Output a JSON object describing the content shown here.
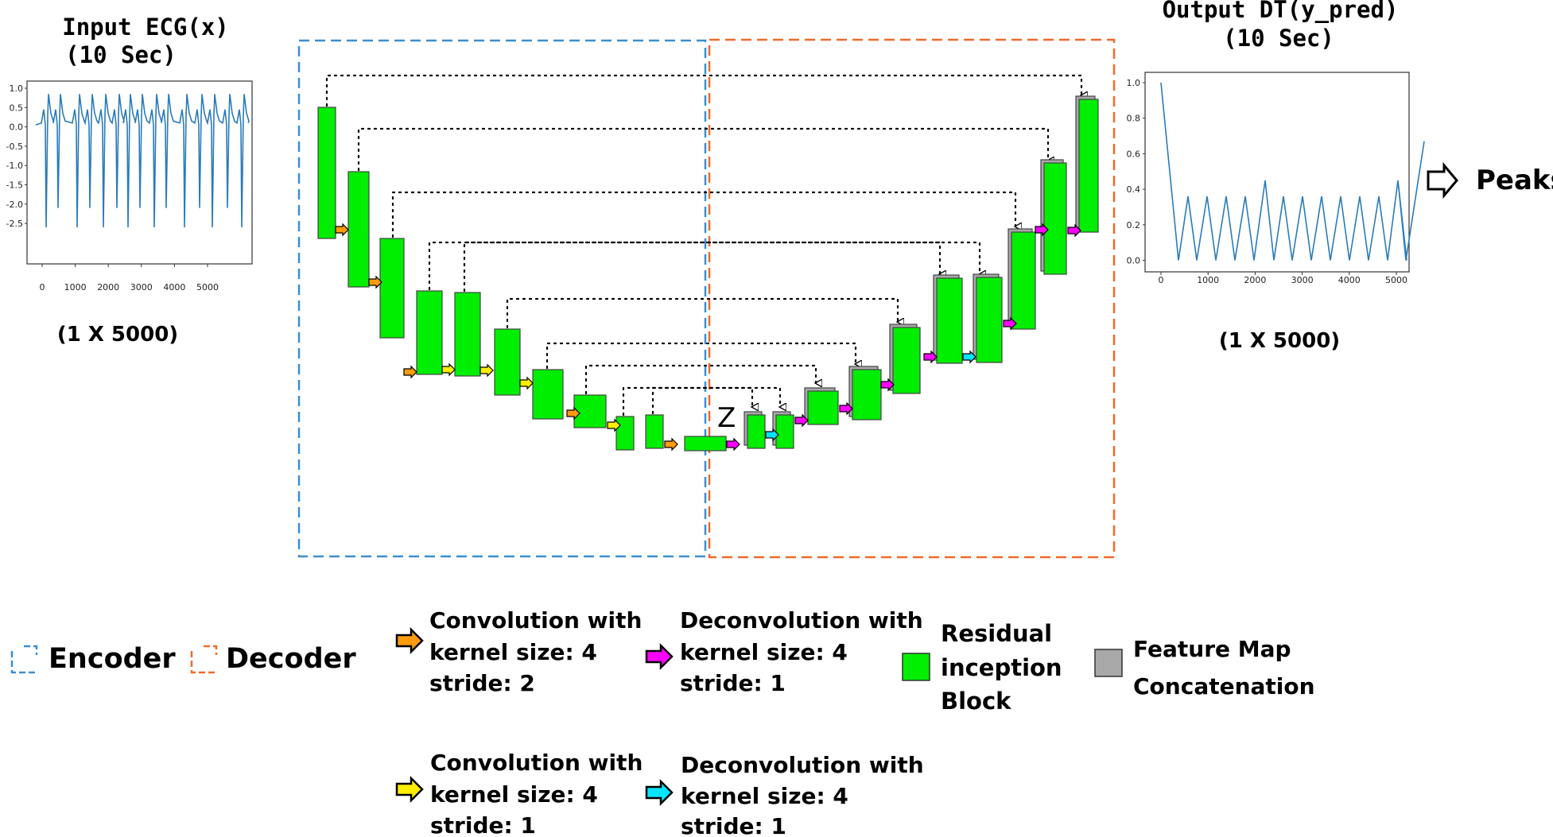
{
  "input": {
    "title_line1": "Input ECG(x)",
    "title_line2": "(10 Sec)",
    "shape": "(1 X 5000)",
    "y_ticks": [
      "1.0",
      "0.5",
      "0.0",
      "-0.5",
      "-1.0",
      "-1.5",
      "-2.0",
      "-2.5"
    ],
    "x_ticks": [
      "0",
      "1000",
      "2000",
      "3000",
      "4000",
      "5000"
    ]
  },
  "output": {
    "title_line1": "Output DT(y_pred)",
    "title_line2": "(10 Sec)",
    "shape": "(1 X 5000)",
    "y_ticks": [
      "1.0",
      "0.8",
      "0.6",
      "0.4",
      "0.2",
      "0.0"
    ],
    "x_ticks": [
      "0",
      "1000",
      "2000",
      "3000",
      "4000",
      "5000"
    ]
  },
  "peaks_label": "Peaks",
  "bottleneck_label": "Z",
  "colors": {
    "encoder": "#3b8fd0",
    "decoder": "#f06a2a",
    "block": "#00ee00",
    "concat": "#a8a8a8",
    "conv_stride2": "#ff9b0f",
    "conv_stride1": "#ffee00",
    "deconv_magenta": "#ff00ff",
    "deconv_cyan": "#00e5ff",
    "signal": "#2b7bb9"
  },
  "legend": {
    "encoder": "Encoder",
    "decoder": "Decoder",
    "conv_s2": [
      "Convolution with",
      "kernel size: 4",
      "stride: 2"
    ],
    "conv_s1": [
      "Convolution with",
      "kernel size: 4",
      "stride: 1"
    ],
    "deconv_magenta": [
      "Deconvolution with",
      "kernel size: 4",
      "stride: 1"
    ],
    "deconv_cyan": [
      "Deconvolution with",
      "kernel size: 4",
      "stride: 1"
    ],
    "residual": [
      "Residual",
      "inception",
      "Block"
    ],
    "concat": [
      "Feature Map",
      "Concatenation"
    ]
  }
}
